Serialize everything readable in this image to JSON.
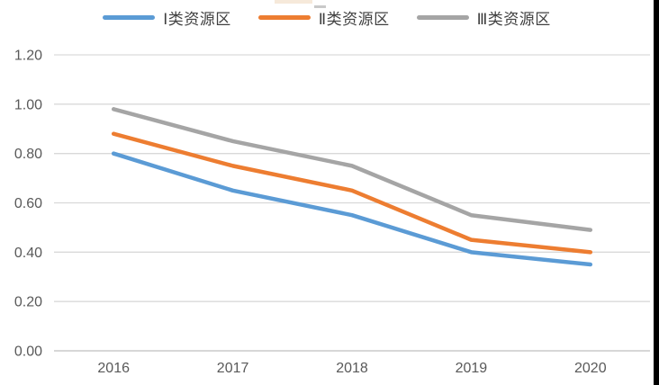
{
  "chart_data": {
    "type": "line",
    "x": [
      "2016",
      "2017",
      "2018",
      "2019",
      "2020"
    ],
    "series": [
      {
        "name": "Ⅰ类资源区",
        "color": "#5B9BD5",
        "values": [
          0.8,
          0.65,
          0.55,
          0.4,
          0.35
        ]
      },
      {
        "name": "Ⅱ类资源区",
        "color": "#ED7D31",
        "values": [
          0.88,
          0.75,
          0.65,
          0.45,
          0.4
        ]
      },
      {
        "name": "Ⅲ类资源区",
        "color": "#A5A5A5",
        "values": [
          0.98,
          0.85,
          0.75,
          0.55,
          0.49
        ]
      }
    ],
    "title": "",
    "xlabel": "",
    "ylabel": "",
    "ylim": [
      0.0,
      1.2
    ],
    "ytick_step": 0.2,
    "ytick_labels": [
      "0.00",
      "0.20",
      "0.40",
      "0.60",
      "0.80",
      "1.00",
      "1.20"
    ],
    "grid": true,
    "legend_position": "top"
  },
  "style": {
    "grid_color": "#D9D9D9",
    "axis_line_color": "#BFBFBF",
    "tick_text_color": "#595959",
    "legend_text_color": "#404040",
    "background_color": "#FFFFFF",
    "right_border_color": "#000000",
    "line_width": 4.5
  }
}
